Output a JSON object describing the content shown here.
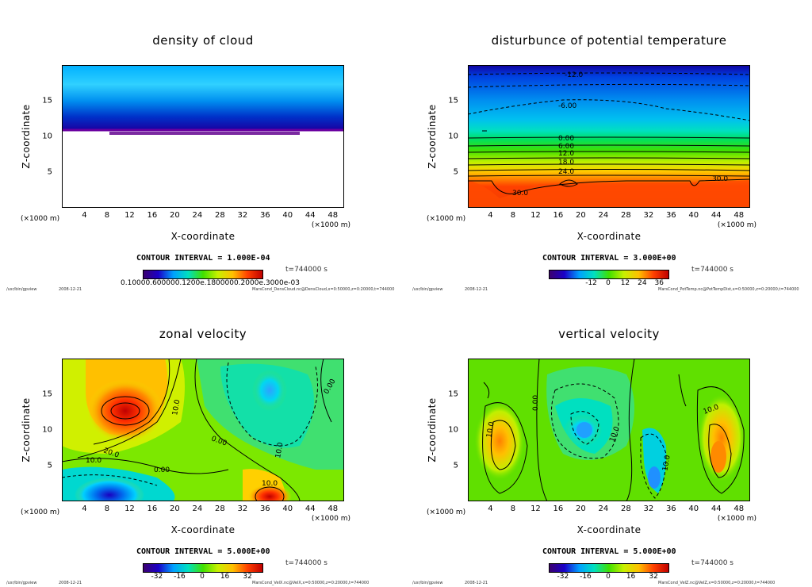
{
  "figure": {
    "x_axis_label": "X-coordinate",
    "z_axis_label": "Z-coordinate",
    "unit_label": "(×1000 m)",
    "x_ticks": [
      "4",
      "8",
      "12",
      "16",
      "20",
      "24",
      "28",
      "32",
      "36",
      "40",
      "44",
      "48"
    ],
    "z_ticks": [
      "5",
      "10",
      "15"
    ],
    "footer_program": "/usr/bin/gpview",
    "footer_date": "2008-12-21",
    "time_label": "t=744000  s"
  },
  "panels": [
    {
      "title": "density of cloud",
      "contour_interval": "CONTOUR INTERVAL = 1.000E-04",
      "colorbar_ticks_overlap": "0.10000.600000.1200e.1800000.2000e.3000e-03",
      "footer_file": "MarsCond_DensCloud.nc@DensCloud,x=0:50000,z=0:20000,t=744000"
    },
    {
      "title": "disturbunce of potential temperature",
      "contour_interval": "CONTOUR INTERVAL = 3.000E+00",
      "colorbar_ticks": [
        "-12",
        "0",
        "12",
        "24",
        "36"
      ],
      "contour_labels": [
        "-12.0",
        "-6.00",
        "0.00",
        "6.00",
        "12.0",
        "18.0",
        "24.0",
        "30.0",
        "30.0"
      ],
      "footer_file": "MarsCond_PotTemp.nc@PotTempDist,x=0:50000,z=0:20000,t=744000"
    },
    {
      "title": "zonal velocity",
      "contour_interval": "CONTOUR INTERVAL = 5.000E+00",
      "colorbar_ticks": [
        "-32",
        "-16",
        "0",
        "16",
        "32"
      ],
      "contour_labels": [
        "10.0",
        "20.0",
        "0.00",
        "10.0",
        "0.00",
        "10.0",
        "0.00",
        "10.0"
      ],
      "footer_file": "MarsCond_VelX.nc@VelX,x=0:50000,z=0:20000,t=744000"
    },
    {
      "title": "vertical velocity",
      "contour_interval": "CONTOUR INTERVAL = 5.000E+00",
      "colorbar_ticks": [
        "-32",
        "-16",
        "0",
        "16",
        "32"
      ],
      "contour_labels": [
        "10.0",
        "0.00",
        "10.0",
        "10.0",
        "10.0"
      ],
      "footer_file": "MarsCond_VelZ.nc@VelZ,x=0:50000,z=0:20000,t=744000"
    }
  ],
  "chart_data": [
    {
      "type": "heatmap",
      "title": "density of cloud",
      "xlabel": "X-coordinate",
      "ylabel": "Z-coordinate",
      "xlim": [
        0,
        50
      ],
      "ylim": [
        0,
        20
      ],
      "description_values": {
        "cloud_layer_z_range": [
          10.8,
          20
        ],
        "colorbar_max": "3.000e-03"
      }
    },
    {
      "type": "heatmap",
      "title": "disturbunce of potential temperature",
      "xlabel": "X-coordinate",
      "ylabel": "Z-coordinate",
      "xlim": [
        0,
        50
      ],
      "ylim": [
        0,
        20
      ],
      "colorbar_ticks": [
        -12,
        0,
        12,
        24,
        36
      ],
      "contour_levels": [
        -12.0,
        -6.0,
        0.0,
        6.0,
        12.0,
        18.0,
        24.0,
        30.0
      ]
    },
    {
      "type": "heatmap",
      "title": "zonal velocity",
      "xlabel": "X-coordinate",
      "ylabel": "Z-coordinate",
      "xlim": [
        0,
        50
      ],
      "ylim": [
        0,
        20
      ],
      "colorbar_ticks": [
        -32,
        -16,
        0,
        16,
        32
      ],
      "contour_levels": [
        0.0,
        10.0,
        20.0
      ]
    },
    {
      "type": "heatmap",
      "title": "vertical velocity",
      "xlabel": "X-coordinate",
      "ylabel": "Z-coordinate",
      "xlim": [
        0,
        50
      ],
      "ylim": [
        0,
        20
      ],
      "colorbar_ticks": [
        -32,
        -16,
        0,
        16,
        32
      ],
      "contour_levels": [
        0.0,
        10.0
      ]
    }
  ]
}
